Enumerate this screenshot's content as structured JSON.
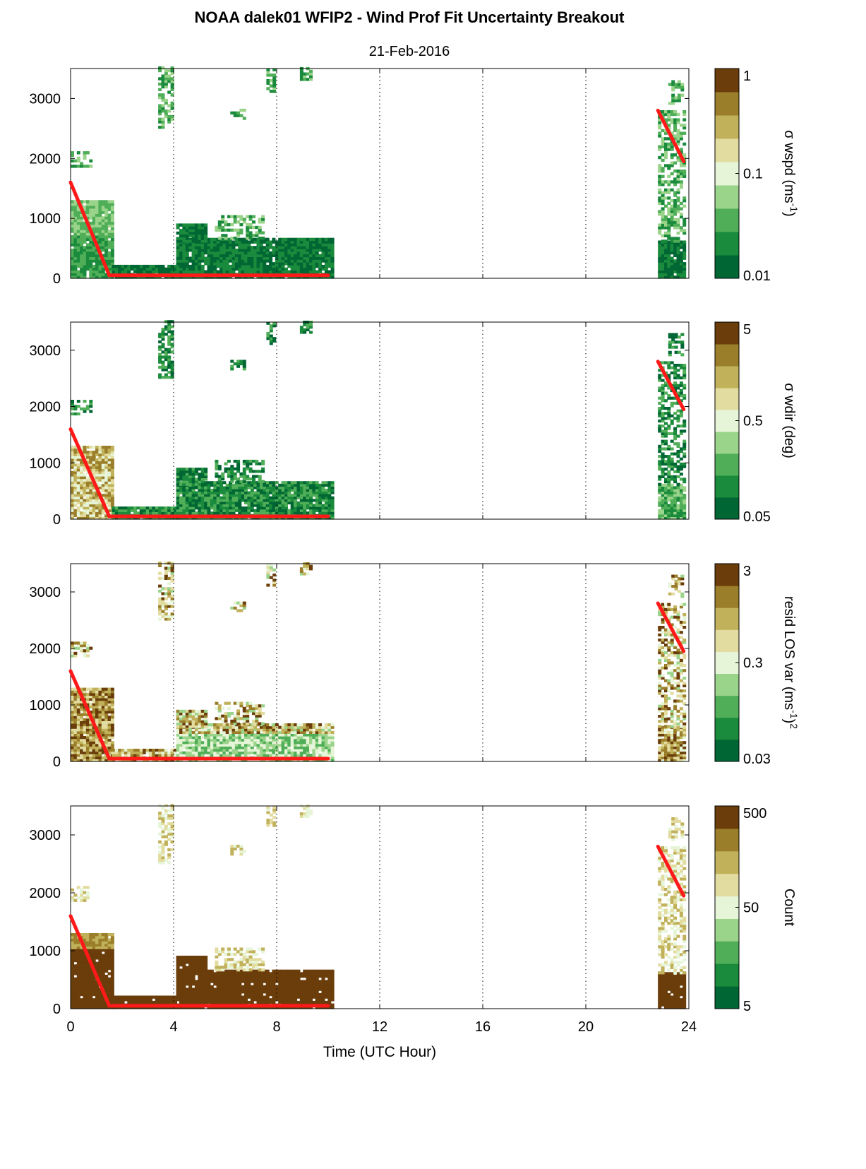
{
  "figure": {
    "title": "NOAA dalek01 WFIP2 - Wind Prof Fit Uncertainty Breakout",
    "subtitle": "21-Feb-2016",
    "xlabel": "Time (UTC Hour)"
  },
  "colors": {
    "red_line": "#ff1a1a",
    "grid": "#000000",
    "colormap": [
      "#006633",
      "#1a8a3c",
      "#4fae57",
      "#9ad38a",
      "#e6f5d8",
      "#e2dca0",
      "#c0b15a",
      "#9a7e2a",
      "#6a3d0a"
    ]
  },
  "chart_data": [
    {
      "type": "heatmap",
      "panel": "wspd",
      "cbar_label_main": "σ wspd (ms",
      "cbar_label_sup": "-1",
      "cbar_label_tail": ")",
      "cbar_ticks": [
        "0.01",
        "0.1",
        "1"
      ],
      "cbar_scale": "log",
      "xlim": [
        0,
        24
      ],
      "ylim": [
        0,
        3500
      ],
      "xticks": [
        0,
        4,
        8,
        12,
        16,
        20,
        24
      ],
      "yticks": [
        0,
        1000,
        2000,
        3000
      ],
      "grid": "dotted vertical at 4-hour ticks",
      "red_line": [
        {
          "x": [
            0,
            1.5,
            10
          ],
          "y": [
            1600,
            50,
            50
          ]
        },
        {
          "x": [
            22.8,
            23.8
          ],
          "y": [
            2800,
            1950
          ]
        }
      ]
    },
    {
      "type": "heatmap",
      "panel": "wdir",
      "cbar_label_main": "σ wdir (deg)",
      "cbar_label_sup": "",
      "cbar_label_tail": "",
      "cbar_ticks": [
        "0.05",
        "0.5",
        "5"
      ],
      "cbar_scale": "log",
      "xlim": [
        0,
        24
      ],
      "ylim": [
        0,
        3500
      ],
      "xticks": [
        0,
        4,
        8,
        12,
        16,
        20,
        24
      ],
      "yticks": [
        0,
        1000,
        2000,
        3000
      ],
      "grid": "dotted vertical at 4-hour ticks",
      "red_line": [
        {
          "x": [
            0,
            1.5,
            10
          ],
          "y": [
            1600,
            50,
            50
          ]
        },
        {
          "x": [
            22.8,
            23.8
          ],
          "y": [
            2800,
            1950
          ]
        }
      ]
    },
    {
      "type": "heatmap",
      "panel": "resid",
      "cbar_label_main": "resid LOS var (ms",
      "cbar_label_sup": "-1",
      "cbar_label_tail": ")",
      "cbar_label_sup2": "2",
      "cbar_ticks": [
        "0.03",
        "0.3",
        "3"
      ],
      "cbar_scale": "log",
      "xlim": [
        0,
        24
      ],
      "ylim": [
        0,
        3500
      ],
      "xticks": [
        0,
        4,
        8,
        12,
        16,
        20,
        24
      ],
      "yticks": [
        0,
        1000,
        2000,
        3000
      ],
      "grid": "dotted vertical at 4-hour ticks",
      "red_line": [
        {
          "x": [
            0,
            1.5,
            10
          ],
          "y": [
            1600,
            50,
            50
          ]
        },
        {
          "x": [
            22.8,
            23.8
          ],
          "y": [
            2800,
            1950
          ]
        }
      ]
    },
    {
      "type": "heatmap",
      "panel": "count",
      "cbar_label_main": "Count",
      "cbar_label_sup": "",
      "cbar_label_tail": "",
      "cbar_ticks": [
        "5",
        "50",
        "500"
      ],
      "cbar_scale": "log",
      "xlim": [
        0,
        24
      ],
      "ylim": [
        0,
        3500
      ],
      "xticks": [
        0,
        4,
        8,
        12,
        16,
        20,
        24
      ],
      "yticks": [
        0,
        1000,
        2000,
        3000
      ],
      "grid": "dotted vertical at 4-hour ticks",
      "red_line": [
        {
          "x": [
            0,
            1.5,
            10
          ],
          "y": [
            1600,
            50,
            50
          ]
        },
        {
          "x": [
            22.8,
            23.8
          ],
          "y": [
            2800,
            1950
          ]
        }
      ]
    }
  ]
}
